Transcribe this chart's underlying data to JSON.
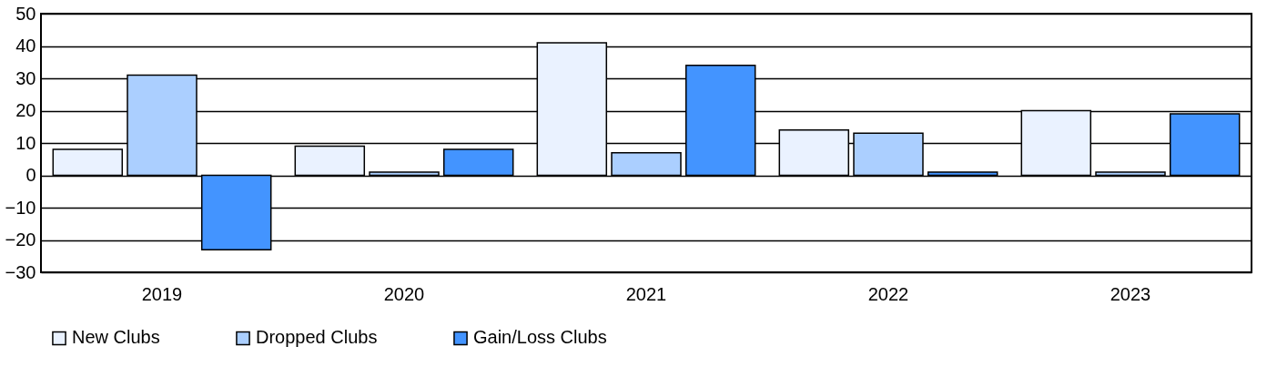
{
  "chart_data": {
    "type": "bar",
    "categories": [
      "2019",
      "2020",
      "2021",
      "2022",
      "2023"
    ],
    "series": [
      {
        "name": "New Clubs",
        "color": "#eaf2ff",
        "values": [
          8,
          9,
          41,
          14,
          20
        ]
      },
      {
        "name": "Dropped Clubs",
        "color": "#abcfff",
        "values": [
          31,
          1,
          7,
          13,
          1
        ]
      },
      {
        "name": "Gain/Loss Clubs",
        "color": "#4394ff",
        "values": [
          -23,
          8,
          34,
          1,
          19
        ]
      }
    ],
    "ylim": [
      -30,
      50
    ],
    "yticks": [
      -30,
      -20,
      -10,
      0,
      10,
      20,
      30,
      40,
      50
    ],
    "grid": "y",
    "legend": "bottom"
  }
}
